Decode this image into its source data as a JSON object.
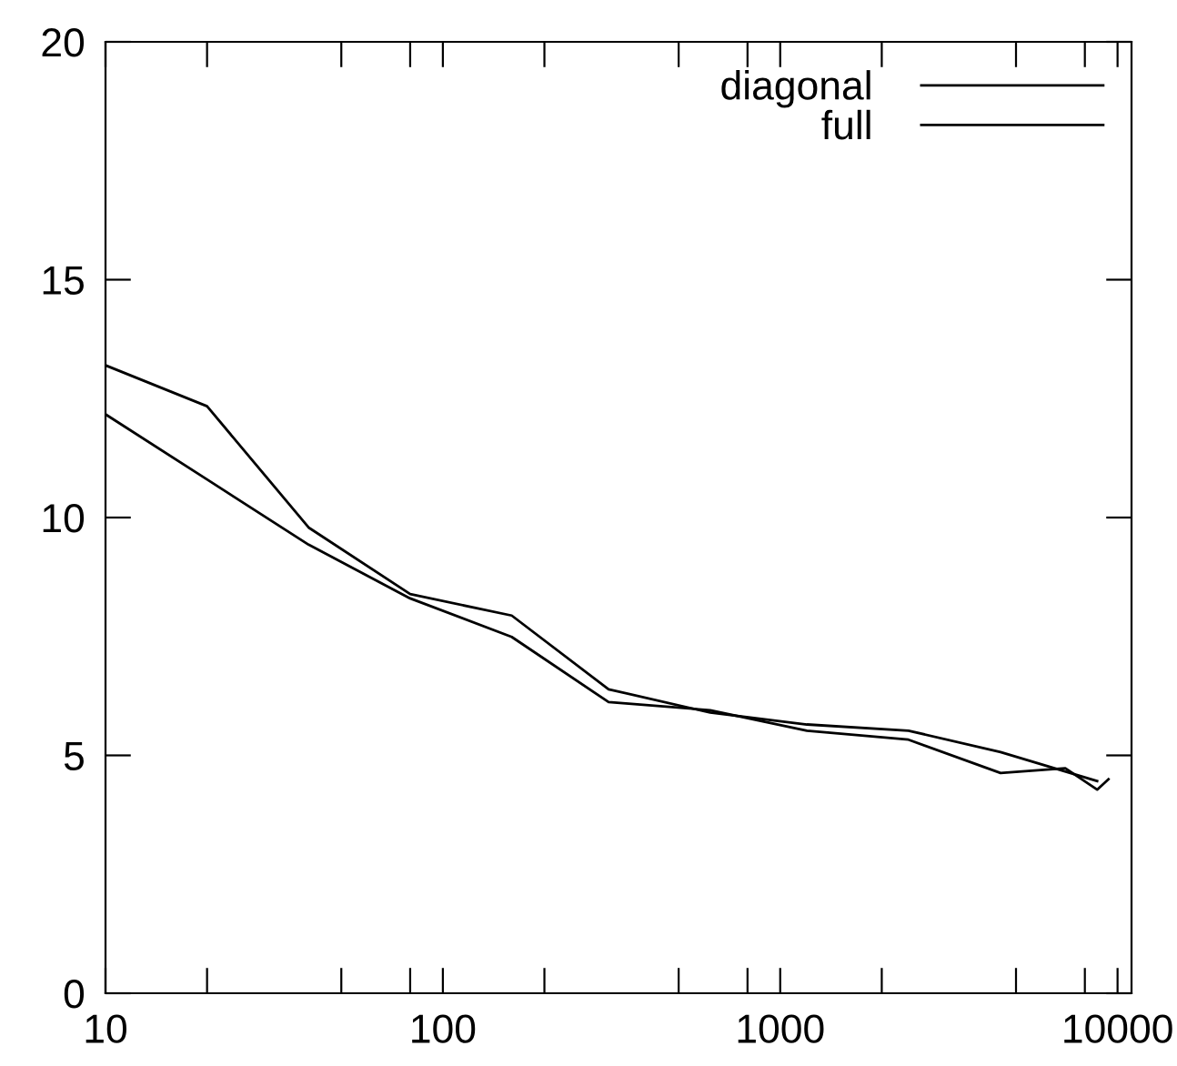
{
  "chart_data": {
    "type": "line",
    "log": "x",
    "xlim": [
      10,
      11000
    ],
    "ylim": [
      0,
      20
    ],
    "xticks": [
      10,
      {
        "value": 20,
        "label": null
      },
      {
        "value": 50,
        "label": null
      },
      {
        "value": 80,
        "label": null
      },
      100,
      {
        "value": 200,
        "label": null
      },
      {
        "value": 500,
        "label": null
      },
      {
        "value": 800,
        "label": null
      },
      1000,
      {
        "value": 2000,
        "label": null
      },
      {
        "value": 5000,
        "label": null
      },
      {
        "value": 8000,
        "label": null
      },
      10000
    ],
    "yticks": [
      0,
      5,
      10,
      15,
      20
    ],
    "legend": "top right",
    "grid": false,
    "series": [
      {
        "name": "diagonal",
        "color": "#000000",
        "x": [
          10,
          20,
          40,
          80,
          160,
          310,
          620,
          1200,
          2400,
          4500,
          8700
        ],
        "values": [
          13.2,
          12.34,
          9.79,
          8.39,
          7.94,
          6.39,
          5.9,
          5.65,
          5.52,
          5.07,
          4.46
        ]
      },
      {
        "name": "full",
        "color": "#000000",
        "x": [
          10,
          20,
          40,
          80,
          160,
          310,
          620,
          1200,
          2400,
          4500,
          7000,
          8700,
          9400
        ],
        "values": [
          12.17,
          10.8,
          9.43,
          8.3,
          7.49,
          6.12,
          5.95,
          5.52,
          5.33,
          4.63,
          4.73,
          4.28,
          4.5
        ]
      }
    ]
  }
}
